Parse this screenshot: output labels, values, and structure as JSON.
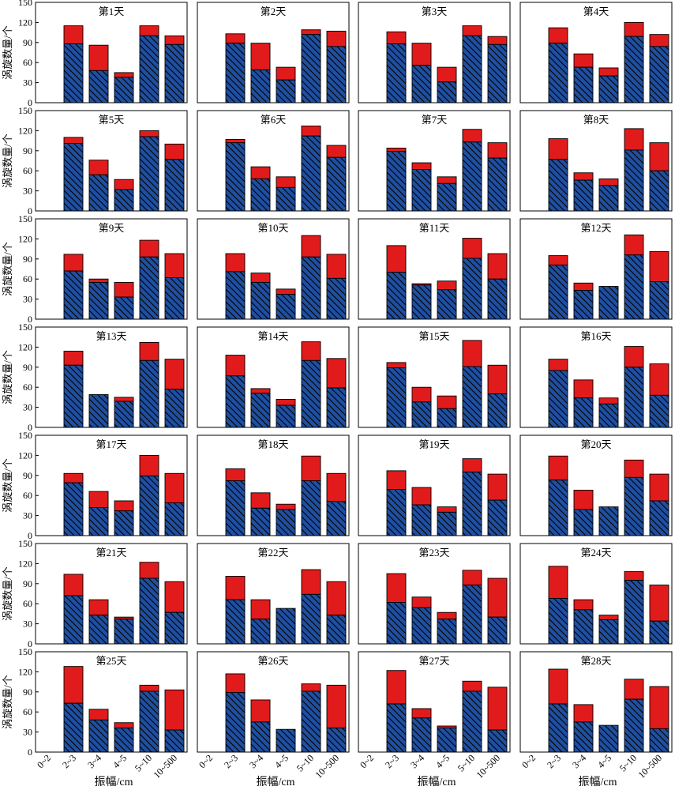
{
  "figure": {
    "ylabel": "涡旋数量/个",
    "xlabel": "振幅/cm"
  },
  "chart_data": {
    "type": "bar",
    "stacked": true,
    "categories": [
      "0~2",
      "2~3",
      "3~4",
      "4~5",
      "5~10",
      "10~500"
    ],
    "ylim": [
      0,
      150
    ],
    "yticks": [
      0,
      30,
      60,
      90,
      120,
      150
    ],
    "colors": {
      "lower": "#1f4fa0",
      "upper": "#e11b1b",
      "hatch": "#000000"
    },
    "panels": [
      {
        "title": "第1天",
        "lower": [
          0,
          88,
          48,
          38,
          100,
          87
        ],
        "total": [
          0,
          115,
          86,
          45,
          115,
          100
        ]
      },
      {
        "title": "第2天",
        "lower": [
          0,
          89,
          49,
          34,
          102,
          84
        ],
        "total": [
          0,
          103,
          89,
          53,
          109,
          107
        ]
      },
      {
        "title": "第3天",
        "lower": [
          0,
          88,
          56,
          31,
          100,
          87
        ],
        "total": [
          0,
          106,
          89,
          53,
          115,
          99
        ]
      },
      {
        "title": "第4天",
        "lower": [
          0,
          89,
          53,
          40,
          99,
          84
        ],
        "total": [
          0,
          112,
          73,
          52,
          120,
          102
        ]
      },
      {
        "title": "第5天",
        "lower": [
          0,
          101,
          54,
          32,
          111,
          77
        ],
        "total": [
          0,
          110,
          76,
          47,
          120,
          100
        ]
      },
      {
        "title": "第6天",
        "lower": [
          0,
          102,
          48,
          35,
          112,
          80
        ],
        "total": [
          0,
          107,
          66,
          51,
          127,
          98
        ]
      },
      {
        "title": "第7天",
        "lower": [
          0,
          89,
          62,
          41,
          103,
          79
        ],
        "total": [
          0,
          94,
          72,
          51,
          122,
          102
        ]
      },
      {
        "title": "第8天",
        "lower": [
          0,
          77,
          46,
          38,
          91,
          60
        ],
        "total": [
          0,
          108,
          57,
          48,
          123,
          102
        ]
      },
      {
        "title": "第9天",
        "lower": [
          0,
          72,
          55,
          33,
          93,
          62
        ],
        "total": [
          0,
          97,
          60,
          55,
          118,
          98
        ]
      },
      {
        "title": "第10天",
        "lower": [
          0,
          71,
          55,
          37,
          93,
          61
        ],
        "total": [
          0,
          98,
          69,
          45,
          125,
          97
        ]
      },
      {
        "title": "第11天",
        "lower": [
          0,
          70,
          51,
          44,
          91,
          60
        ],
        "total": [
          0,
          110,
          53,
          57,
          121,
          98
        ]
      },
      {
        "title": "第12天",
        "lower": [
          0,
          81,
          43,
          49,
          96,
          56
        ],
        "total": [
          0,
          95,
          54,
          49,
          126,
          101
        ]
      },
      {
        "title": "第13天",
        "lower": [
          0,
          93,
          49,
          39,
          100,
          57
        ],
        "total": [
          0,
          114,
          49,
          45,
          127,
          102
        ]
      },
      {
        "title": "第14天",
        "lower": [
          0,
          77,
          51,
          33,
          100,
          59
        ],
        "total": [
          0,
          108,
          58,
          42,
          128,
          103
        ]
      },
      {
        "title": "第15天",
        "lower": [
          0,
          89,
          38,
          28,
          91,
          50
        ],
        "total": [
          0,
          97,
          60,
          47,
          130,
          93
        ]
      },
      {
        "title": "第16天",
        "lower": [
          0,
          85,
          44,
          35,
          90,
          48
        ],
        "total": [
          0,
          102,
          71,
          44,
          121,
          95
        ]
      },
      {
        "title": "第17天",
        "lower": [
          0,
          79,
          42,
          37,
          89,
          49
        ],
        "total": [
          0,
          93,
          66,
          52,
          120,
          93
        ]
      },
      {
        "title": "第18天",
        "lower": [
          0,
          82,
          41,
          39,
          82,
          51
        ],
        "total": [
          0,
          100,
          64,
          47,
          119,
          93
        ]
      },
      {
        "title": "第19天",
        "lower": [
          0,
          69,
          46,
          35,
          95,
          53
        ],
        "total": [
          0,
          97,
          72,
          43,
          115,
          92
        ]
      },
      {
        "title": "第20天",
        "lower": [
          0,
          83,
          39,
          43,
          87,
          52
        ],
        "total": [
          0,
          119,
          68,
          43,
          113,
          92
        ]
      },
      {
        "title": "第21天",
        "lower": [
          0,
          72,
          43,
          37,
          98,
          47
        ],
        "total": [
          0,
          104,
          66,
          40,
          122,
          93
        ]
      },
      {
        "title": "第22天",
        "lower": [
          0,
          66,
          37,
          53,
          74,
          43
        ],
        "total": [
          0,
          101,
          66,
          53,
          111,
          93
        ]
      },
      {
        "title": "第23天",
        "lower": [
          0,
          62,
          54,
          37,
          88,
          40
        ],
        "total": [
          0,
          105,
          70,
          47,
          110,
          98
        ]
      },
      {
        "title": "第24天",
        "lower": [
          0,
          68,
          51,
          36,
          95,
          34
        ],
        "total": [
          0,
          116,
          66,
          43,
          108,
          88
        ]
      },
      {
        "title": "第25天",
        "lower": [
          0,
          73,
          48,
          36,
          91,
          33
        ],
        "total": [
          0,
          128,
          64,
          44,
          100,
          93
        ]
      },
      {
        "title": "第26天",
        "lower": [
          0,
          89,
          45,
          34,
          91,
          36
        ],
        "total": [
          0,
          117,
          78,
          34,
          102,
          100
        ]
      },
      {
        "title": "第27天",
        "lower": [
          0,
          72,
          51,
          36,
          91,
          33
        ],
        "total": [
          0,
          122,
          65,
          39,
          106,
          97
        ]
      },
      {
        "title": "第28天",
        "lower": [
          0,
          72,
          45,
          40,
          79,
          35
        ],
        "total": [
          0,
          124,
          71,
          40,
          109,
          98
        ]
      }
    ]
  }
}
